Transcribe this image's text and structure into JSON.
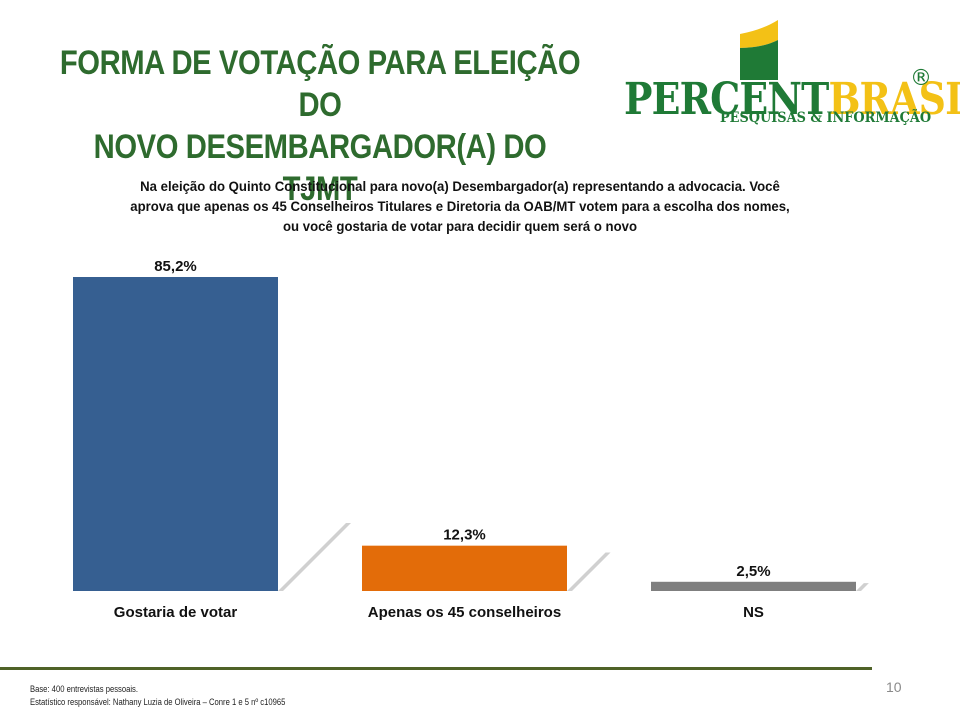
{
  "slide": {
    "title_line1": "FORMA DE VOTAÇÃO PARA ELEIÇÃO DO",
    "title_line2": "NOVO DESEMBARGADOR(A) DO TJMT",
    "question": "Na eleição do Quinto Constitucional para novo(a) Desembargador(a) representando a advocacia. Você aprova que apenas os 45 Conselheiros Titulares e Diretoria da OAB/MT votem para a escolha dos nomes, ou você gostaria de votar para decidir quem será o novo",
    "footnote_line1": "Base: 400 entrevistas pessoais.",
    "footnote_line2": "Estatístico responsável: Nathany Luzia de Oliveira – Conre 1 e 5 nº c10965",
    "page_number": "10"
  },
  "logo": {
    "percent": "PERCENT",
    "brasil": "BRASIL",
    "registered": "®",
    "subtitle": "PESQUISAS & INFORMAÇÃO",
    "colors": {
      "green": "#1f7a36",
      "yellow": "#f3c116"
    }
  },
  "chart_data": {
    "type": "bar",
    "categories": [
      "Gostaria de votar",
      "Apenas os 45 conselheiros",
      "NS"
    ],
    "values": [
      85.2,
      12.3,
      2.5
    ],
    "value_labels": [
      "85,2%",
      "12,3%",
      "2,5%"
    ],
    "colors": [
      "#365f91",
      "#e36c09",
      "#7f7f7f"
    ],
    "ylim": [
      0,
      85.2
    ],
    "grid": false,
    "legend": "none"
  }
}
